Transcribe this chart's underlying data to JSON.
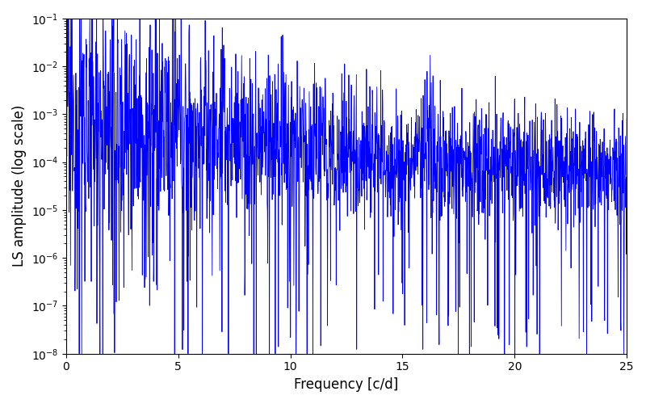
{
  "title": "",
  "xlabel": "Frequency [c/d]",
  "ylabel": "LS amplitude (log scale)",
  "xlim": [
    0,
    25
  ],
  "ylim": [
    1e-08,
    0.1
  ],
  "line_color": "#0000ff",
  "line_width": 0.6,
  "figsize": [
    8.0,
    5.0
  ],
  "dpi": 100,
  "yscale": "log",
  "seed": 12345,
  "n_points": 2000,
  "freq_max": 25.0
}
